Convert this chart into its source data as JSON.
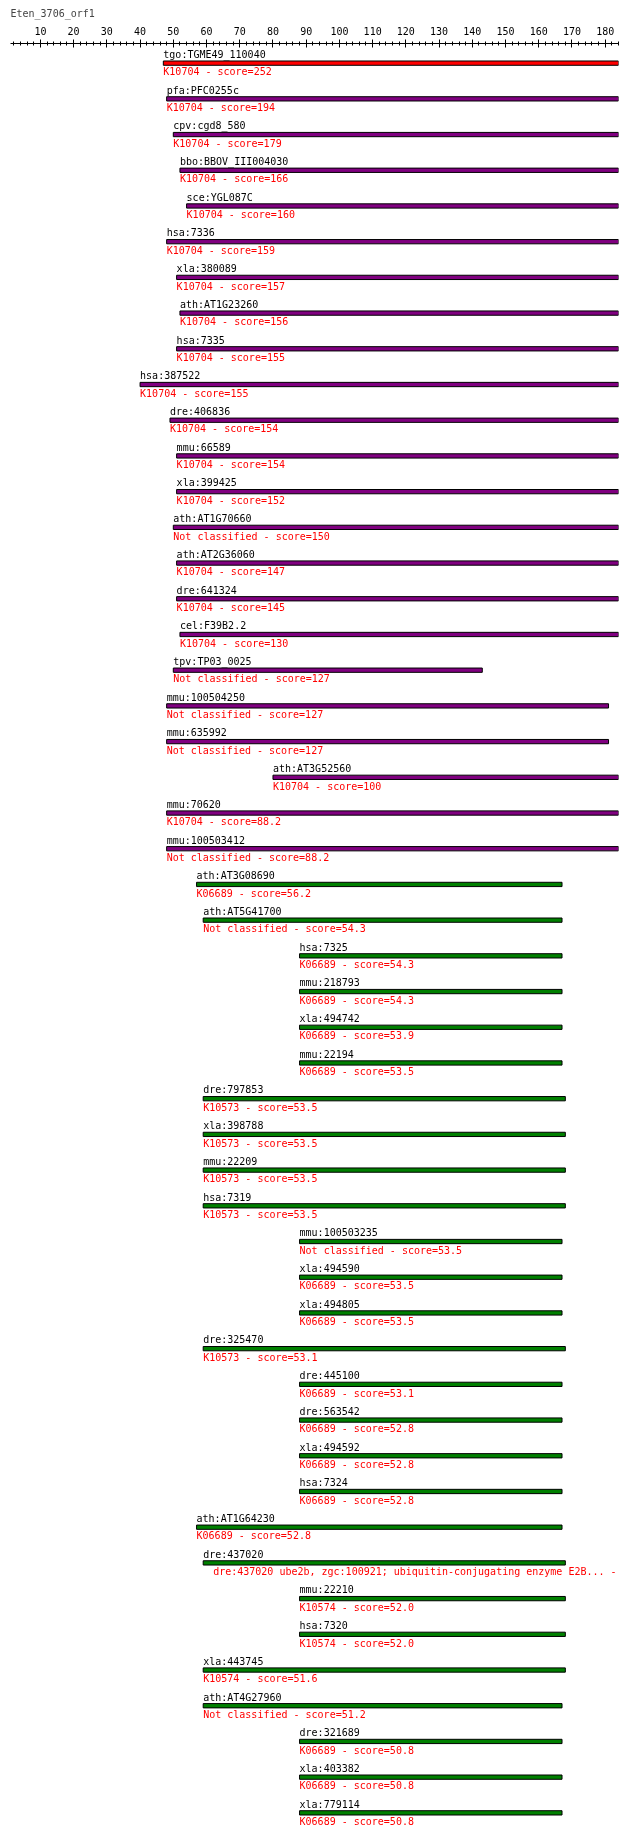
{
  "chart_data": {
    "type": "bar",
    "orientation": "horizontal",
    "title": "Eten_3706_orf1",
    "categories": [
      "tgo:TGME49_110040",
      "pfa:PFC0255c",
      "cpv:cgd8_580",
      "bbo:BBOV_III004030",
      "sce:YGL087C",
      "hsa:7336",
      "xla:380089",
      "ath:AT1G23260",
      "hsa:7335",
      "hsa:387522",
      "dre:406836",
      "mmu:66589",
      "xla:399425",
      "ath:AT1G70660",
      "ath:AT2G36060",
      "dre:641324",
      "cel:F39B2.2",
      "tpv:TP03_0025",
      "mmu:100504250",
      "mmu:635992",
      "ath:AT3G52560",
      "mmu:70620",
      "mmu:100503412",
      "ath:AT3G08690",
      "ath:AT5G41700",
      "hsa:7325",
      "mmu:218793",
      "xla:494742",
      "mmu:22194",
      "dre:797853",
      "xla:398788",
      "mmu:22209",
      "hsa:7319",
      "mmu:100503235",
      "xla:494590",
      "xla:494805",
      "dre:325470",
      "dre:445100",
      "dre:563542",
      "xla:494592",
      "hsa:7324",
      "ath:AT1G64230",
      "dre:437020",
      "mmu:22210",
      "hsa:7320",
      "xla:443745",
      "ath:AT4G27960",
      "dre:321689",
      "xla:403382",
      "xla:779114"
    ],
    "base": [
      47,
      48,
      50,
      52,
      54,
      48,
      51,
      52,
      51,
      40,
      49,
      51,
      51,
      50,
      51,
      51,
      52,
      50,
      48,
      48,
      80,
      48,
      48,
      57,
      59,
      88,
      88,
      88,
      88,
      59,
      59,
      59,
      59,
      88,
      88,
      88,
      59,
      88,
      88,
      88,
      88,
      57,
      59,
      88,
      88,
      59,
      59,
      88,
      88,
      88
    ],
    "values": [
      137,
      136,
      134,
      132,
      130,
      136,
      133,
      132,
      133,
      144,
      135,
      133,
      133,
      134,
      133,
      133,
      132,
      93,
      133,
      133,
      104,
      136,
      136,
      110,
      108,
      79,
      79,
      79,
      79,
      109,
      109,
      109,
      109,
      79,
      79,
      79,
      109,
      79,
      79,
      79,
      79,
      110,
      109,
      80,
      80,
      109,
      108,
      79,
      79,
      79
    ],
    "colors": [
      "#ff0000",
      "#800080",
      "#800080",
      "#800080",
      "#800080",
      "#800080",
      "#800080",
      "#800080",
      "#800080",
      "#800080",
      "#800080",
      "#800080",
      "#800080",
      "#800080",
      "#800080",
      "#800080",
      "#800080",
      "#800080",
      "#800080",
      "#800080",
      "#800080",
      "#800080",
      "#800080",
      "#008000",
      "#008000",
      "#008000",
      "#008000",
      "#008000",
      "#008000",
      "#008000",
      "#008000",
      "#008000",
      "#008000",
      "#008000",
      "#008000",
      "#008000",
      "#008000",
      "#008000",
      "#008000",
      "#008000",
      "#008000",
      "#008000",
      "#008000",
      "#008000",
      "#008000",
      "#008000",
      "#008000",
      "#008000",
      "#008000",
      "#008000"
    ],
    "xlim": [
      1,
      184
    ],
    "xticks": [
      10,
      20,
      30,
      40,
      50,
      60,
      70,
      80,
      90,
      100,
      110,
      120,
      130,
      140,
      150,
      160,
      170,
      180
    ],
    "annotations": [
      {
        "text": "K10704 - score=252",
        "x": 47,
        "y": "tgo:TGME49_110040"
      },
      {
        "text": "K10704 - score=194",
        "x": 48,
        "y": "pfa:PFC0255c"
      },
      {
        "text": "K10704 - score=179",
        "x": 50,
        "y": "cpv:cgd8_580"
      },
      {
        "text": "K10704 - score=166",
        "x": 52,
        "y": "bbo:BBOV_III004030"
      },
      {
        "text": "K10704 - score=160",
        "x": 54,
        "y": "sce:YGL087C"
      },
      {
        "text": "K10704 - score=159",
        "x": 48,
        "y": "hsa:7336"
      },
      {
        "text": "K10704 - score=157",
        "x": 51,
        "y": "xla:380089"
      },
      {
        "text": "K10704 - score=156",
        "x": 52,
        "y": "ath:AT1G23260"
      },
      {
        "text": "K10704 - score=155",
        "x": 51,
        "y": "hsa:7335"
      },
      {
        "text": "K10704 - score=155",
        "x": 40,
        "y": "hsa:387522"
      },
      {
        "text": "K10704 - score=154",
        "x": 49,
        "y": "dre:406836"
      },
      {
        "text": "K10704 - score=154",
        "x": 51,
        "y": "mmu:66589"
      },
      {
        "text": "K10704 - score=152",
        "x": 51,
        "y": "xla:399425"
      },
      {
        "text": "Not classified - score=150",
        "x": 50,
        "y": "ath:AT1G70660"
      },
      {
        "text": "K10704 - score=147",
        "x": 51,
        "y": "ath:AT2G36060"
      },
      {
        "text": "K10704 - score=145",
        "x": 51,
        "y": "dre:641324"
      },
      {
        "text": "K10704 - score=130",
        "x": 52,
        "y": "cel:F39B2.2"
      },
      {
        "text": "Not classified - score=127",
        "x": 50,
        "y": "tpv:TP03_0025"
      },
      {
        "text": "Not classified - score=127",
        "x": 48,
        "y": "mmu:100504250"
      },
      {
        "text": "Not classified - score=127",
        "x": 48,
        "y": "mmu:635992"
      },
      {
        "text": "K10704 - score=100",
        "x": 80,
        "y": "ath:AT3G52560"
      },
      {
        "text": "K10704 - score=88.2",
        "x": 48,
        "y": "mmu:70620"
      },
      {
        "text": "Not classified - score=88.2",
        "x": 48,
        "y": "mmu:100503412"
      },
      {
        "text": "K06689 - score=56.2",
        "x": 57,
        "y": "ath:AT3G08690"
      },
      {
        "text": "Not classified - score=54.3",
        "x": 59,
        "y": "ath:AT5G41700"
      },
      {
        "text": "K06689 - score=54.3",
        "x": 88,
        "y": "hsa:7325"
      },
      {
        "text": "K06689 - score=54.3",
        "x": 88,
        "y": "mmu:218793"
      },
      {
        "text": "K06689 - score=53.9",
        "x": 88,
        "y": "xla:494742"
      },
      {
        "text": "K06689 - score=53.5",
        "x": 88,
        "y": "mmu:22194"
      },
      {
        "text": "K10573 - score=53.5",
        "x": 59,
        "y": "dre:797853"
      },
      {
        "text": "K10573 - score=53.5",
        "x": 59,
        "y": "xla:398788"
      },
      {
        "text": "K10573 - score=53.5",
        "x": 59,
        "y": "mmu:22209"
      },
      {
        "text": "K10573 - score=53.5",
        "x": 59,
        "y": "hsa:7319"
      },
      {
        "text": "Not classified - score=53.5",
        "x": 88,
        "y": "mmu:100503235"
      },
      {
        "text": "K06689 - score=53.5",
        "x": 88,
        "y": "xla:494590"
      },
      {
        "text": "K06689 - score=53.5",
        "x": 88,
        "y": "xla:494805"
      },
      {
        "text": "K10573 - score=53.1",
        "x": 59,
        "y": "dre:325470"
      },
      {
        "text": "K06689 - score=53.1",
        "x": 88,
        "y": "dre:445100"
      },
      {
        "text": "K06689 - score=52.8",
        "x": 88,
        "y": "dre:563542"
      },
      {
        "text": "K06689 - score=52.8",
        "x": 88,
        "y": "xla:494592"
      },
      {
        "text": "K06689 - score=52.8",
        "x": 88,
        "y": "hsa:7324"
      },
      {
        "text": "K06689 - score=52.8",
        "x": 57,
        "y": "ath:AT1G64230"
      },
      {
        "text": "dre:437020  ube2b, zgc:100921; ubiquitin-conjugating enzyme E2B... -",
        "x": 62,
        "y": "dre:437020"
      },
      {
        "text": "K10574 - score=52.0",
        "x": 88,
        "y": "mmu:22210"
      },
      {
        "text": "K10574 - score=52.0",
        "x": 88,
        "y": "hsa:7320"
      },
      {
        "text": "K10574 - score=51.6",
        "x": 59,
        "y": "xla:443745"
      },
      {
        "text": "Not classified - score=51.2",
        "x": 59,
        "y": "ath:AT4G27960"
      },
      {
        "text": "K06689 - score=50.8",
        "x": 88,
        "y": "dre:321689"
      },
      {
        "text": "K06689 - score=50.8",
        "x": 88,
        "y": "xla:403382"
      },
      {
        "text": "K06689 - score=50.8",
        "x": 88,
        "y": "xla:779114"
      }
    ]
  }
}
